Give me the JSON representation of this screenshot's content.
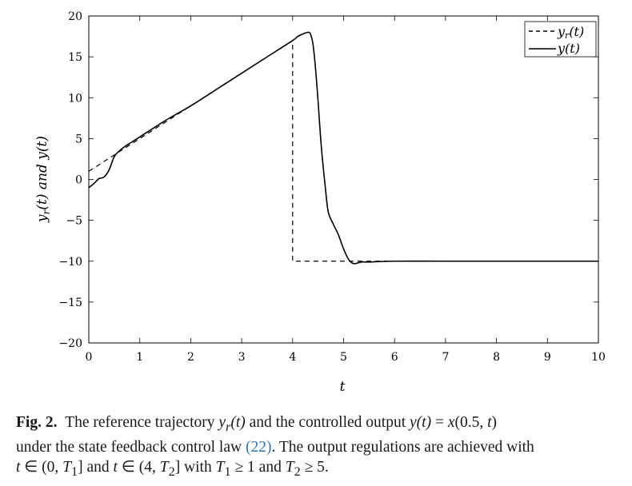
{
  "chart_data": {
    "type": "line",
    "title": "",
    "xlabel": "t",
    "ylabel": "y_r(t) and y(t)",
    "xlim": [
      0,
      10
    ],
    "ylim": [
      -20,
      20
    ],
    "xticks": [
      0,
      1,
      2,
      3,
      4,
      5,
      6,
      7,
      8,
      9,
      10
    ],
    "yticks": [
      20,
      15,
      10,
      5,
      0,
      -5,
      -10,
      -15,
      -20
    ],
    "xtick_labels": [
      "0",
      "1",
      "2",
      "3",
      "4",
      "5",
      "6",
      "7",
      "8",
      "9",
      "10"
    ],
    "ytick_labels": [
      "20",
      "15",
      "10",
      "5",
      "0",
      "−5",
      "−10",
      "−15",
      "−20"
    ],
    "grid": false,
    "legend_position": "top-right",
    "series": [
      {
        "name": "y_r(t)",
        "style": "dashed",
        "color": "#000000",
        "x": [
          0,
          4,
          4,
          10
        ],
        "y": [
          1,
          17,
          -10,
          -10
        ]
      },
      {
        "name": "y(t)",
        "style": "solid",
        "color": "#000000",
        "x": [
          0,
          0.1,
          0.2,
          0.3,
          0.4,
          0.5,
          0.6,
          0.7,
          0.8,
          0.9,
          1.0,
          1.5,
          2.0,
          2.5,
          3.0,
          3.5,
          4.0,
          4.1,
          4.2,
          4.3,
          4.35,
          4.4,
          4.45,
          4.5,
          4.55,
          4.6,
          4.65,
          4.7,
          4.8,
          4.9,
          5.0,
          5.1,
          5.2,
          5.35,
          5.5,
          6.0,
          7.0,
          8.0,
          9.0,
          10.0
        ],
        "y": [
          -1.0,
          -0.5,
          0.1,
          0.3,
          1.2,
          2.8,
          3.5,
          4.0,
          4.4,
          4.8,
          5.2,
          7.2,
          9.0,
          11.0,
          13.0,
          15.0,
          17.0,
          17.5,
          17.8,
          18.0,
          17.8,
          16.5,
          13.5,
          9.5,
          5.0,
          1.5,
          -1.5,
          -4.0,
          -5.5,
          -6.8,
          -8.5,
          -9.8,
          -10.3,
          -10.1,
          -10.1,
          -10.0,
          -10.0,
          -10.0,
          -10.0,
          -10.0
        ]
      }
    ]
  },
  "legend": {
    "items": [
      {
        "label": "y_r(t)",
        "style": "dashed"
      },
      {
        "label": "y(t)",
        "style": "solid"
      }
    ]
  },
  "caption": {
    "label": "Fig. 2.",
    "line1": "The reference trajectory y_r(t) and the controlled output y(t) = x(0.5, t)",
    "line2_before": "under the state feedback control law ",
    "line2_ref": "(22)",
    "line2_after": ". The output regulations are achieved with",
    "line3": "t ∈ (0, T₁] and t ∈ (4, T₂] with T₁ ≥ 1 and T₂ ≥ 5.",
    "ref_color": "#2a7ab0"
  }
}
